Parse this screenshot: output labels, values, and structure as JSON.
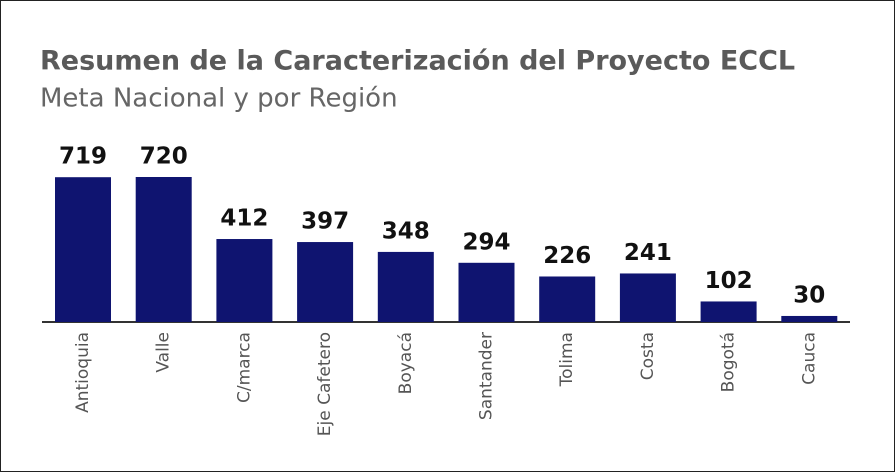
{
  "chart_data": {
    "type": "bar",
    "title": "Resumen de la Caracterización del Proyecto ECCL",
    "subtitle": "Meta Nacional y por Región",
    "categories": [
      "Antioquia",
      "Valle",
      "C/marca",
      "Eje Cafetero",
      "Boyacá",
      "Santander",
      "Tolima",
      "Costa",
      "Bogotá",
      "Cauca"
    ],
    "values": [
      719,
      720,
      412,
      397,
      348,
      294,
      226,
      241,
      102,
      30
    ],
    "color": "#0f1470"
  }
}
